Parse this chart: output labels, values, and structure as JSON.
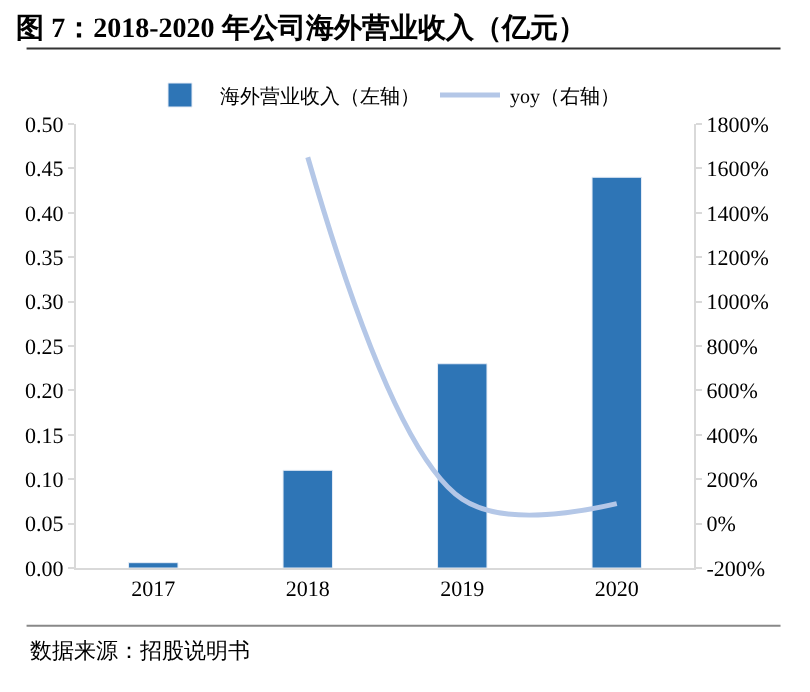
{
  "chart_data": {
    "type": "bar",
    "title": "图 7：2018-2020 年公司海外营业收入（亿元）",
    "categories": [
      "2017",
      "2018",
      "2019",
      "2020"
    ],
    "series": [
      {
        "name": "海外营业收入（左轴）",
        "color": "#2e75b6",
        "values": [
          0.006,
          0.11,
          0.23,
          0.44
        ]
      },
      {
        "name": "yoy（右轴）",
        "color": "#b4c7e7",
        "type": "line",
        "axis": "y2",
        "values": [
          null,
          1650,
          110,
          90
        ]
      }
    ],
    "ylim": [
      0,
      0.5
    ],
    "yticks": [
      {
        "value": 0,
        "label": "0.00"
      },
      {
        "value": 0.05,
        "label": "0.05"
      },
      {
        "value": 0.1,
        "label": "0.10"
      },
      {
        "value": 0.15,
        "label": "0.15"
      },
      {
        "value": 0.2,
        "label": "0.20"
      },
      {
        "value": 0.25,
        "label": "0.25"
      },
      {
        "value": 0.3,
        "label": "0.30"
      },
      {
        "value": 0.35,
        "label": "0.35"
      },
      {
        "value": 0.4,
        "label": "0.40"
      },
      {
        "value": 0.45,
        "label": "0.45"
      },
      {
        "value": 0.5,
        "label": "0.50"
      }
    ],
    "y2lim": [
      -200,
      1800
    ],
    "y2ticks": [
      {
        "value": -200,
        "label": "-200%"
      },
      {
        "value": 0,
        "label": "0%"
      },
      {
        "value": 200,
        "label": "200%"
      },
      {
        "value": 400,
        "label": "400%"
      },
      {
        "value": 600,
        "label": "600%"
      },
      {
        "value": 800,
        "label": "800%"
      },
      {
        "value": 1000,
        "label": "1000%"
      },
      {
        "value": 1200,
        "label": "1200%"
      },
      {
        "value": 1400,
        "label": "1400%"
      },
      {
        "value": 1600,
        "label": "1600%"
      },
      {
        "value": 1800,
        "label": "1800%"
      }
    ],
    "legend": "top",
    "annotations": [
      "数据来源：招股说明书"
    ]
  }
}
